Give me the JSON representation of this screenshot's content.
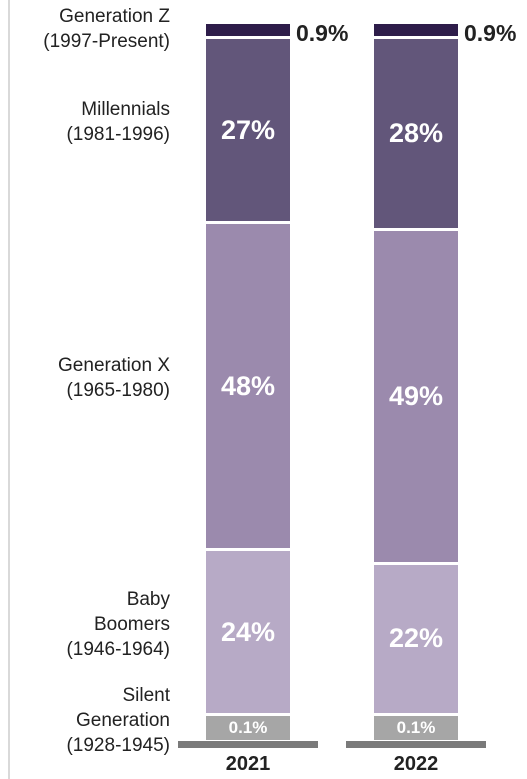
{
  "chart_data": {
    "type": "stacked_bar",
    "categories": [
      "2021",
      "2022"
    ],
    "series": [
      {
        "name": "Silent\nGeneration\n(1928-1945)",
        "color": "#a6a6a6",
        "values": [
          0.1,
          0.1
        ],
        "value_labels": [
          "0.1%",
          "0.1%"
        ]
      },
      {
        "name": "Baby\nBoomers\n(1946-1964)",
        "color": "#b7aac6",
        "values": [
          24,
          22
        ],
        "value_labels": [
          "24%",
          "22%"
        ]
      },
      {
        "name": "Generation X\n(1965-1980)",
        "color": "#9b8aad",
        "values": [
          48,
          49
        ],
        "value_labels": [
          "48%",
          "49%"
        ]
      },
      {
        "name": "Millennials\n(1981-1996)",
        "color": "#62567a",
        "values": [
          27,
          28
        ],
        "value_labels": [
          "27%",
          "28%"
        ]
      },
      {
        "name": "Generation Z\n(1997-Present)",
        "color": "#2e1d4a",
        "values": [
          0.9,
          0.9
        ],
        "value_labels": [
          "0.9%",
          "0.9%"
        ]
      }
    ]
  }
}
